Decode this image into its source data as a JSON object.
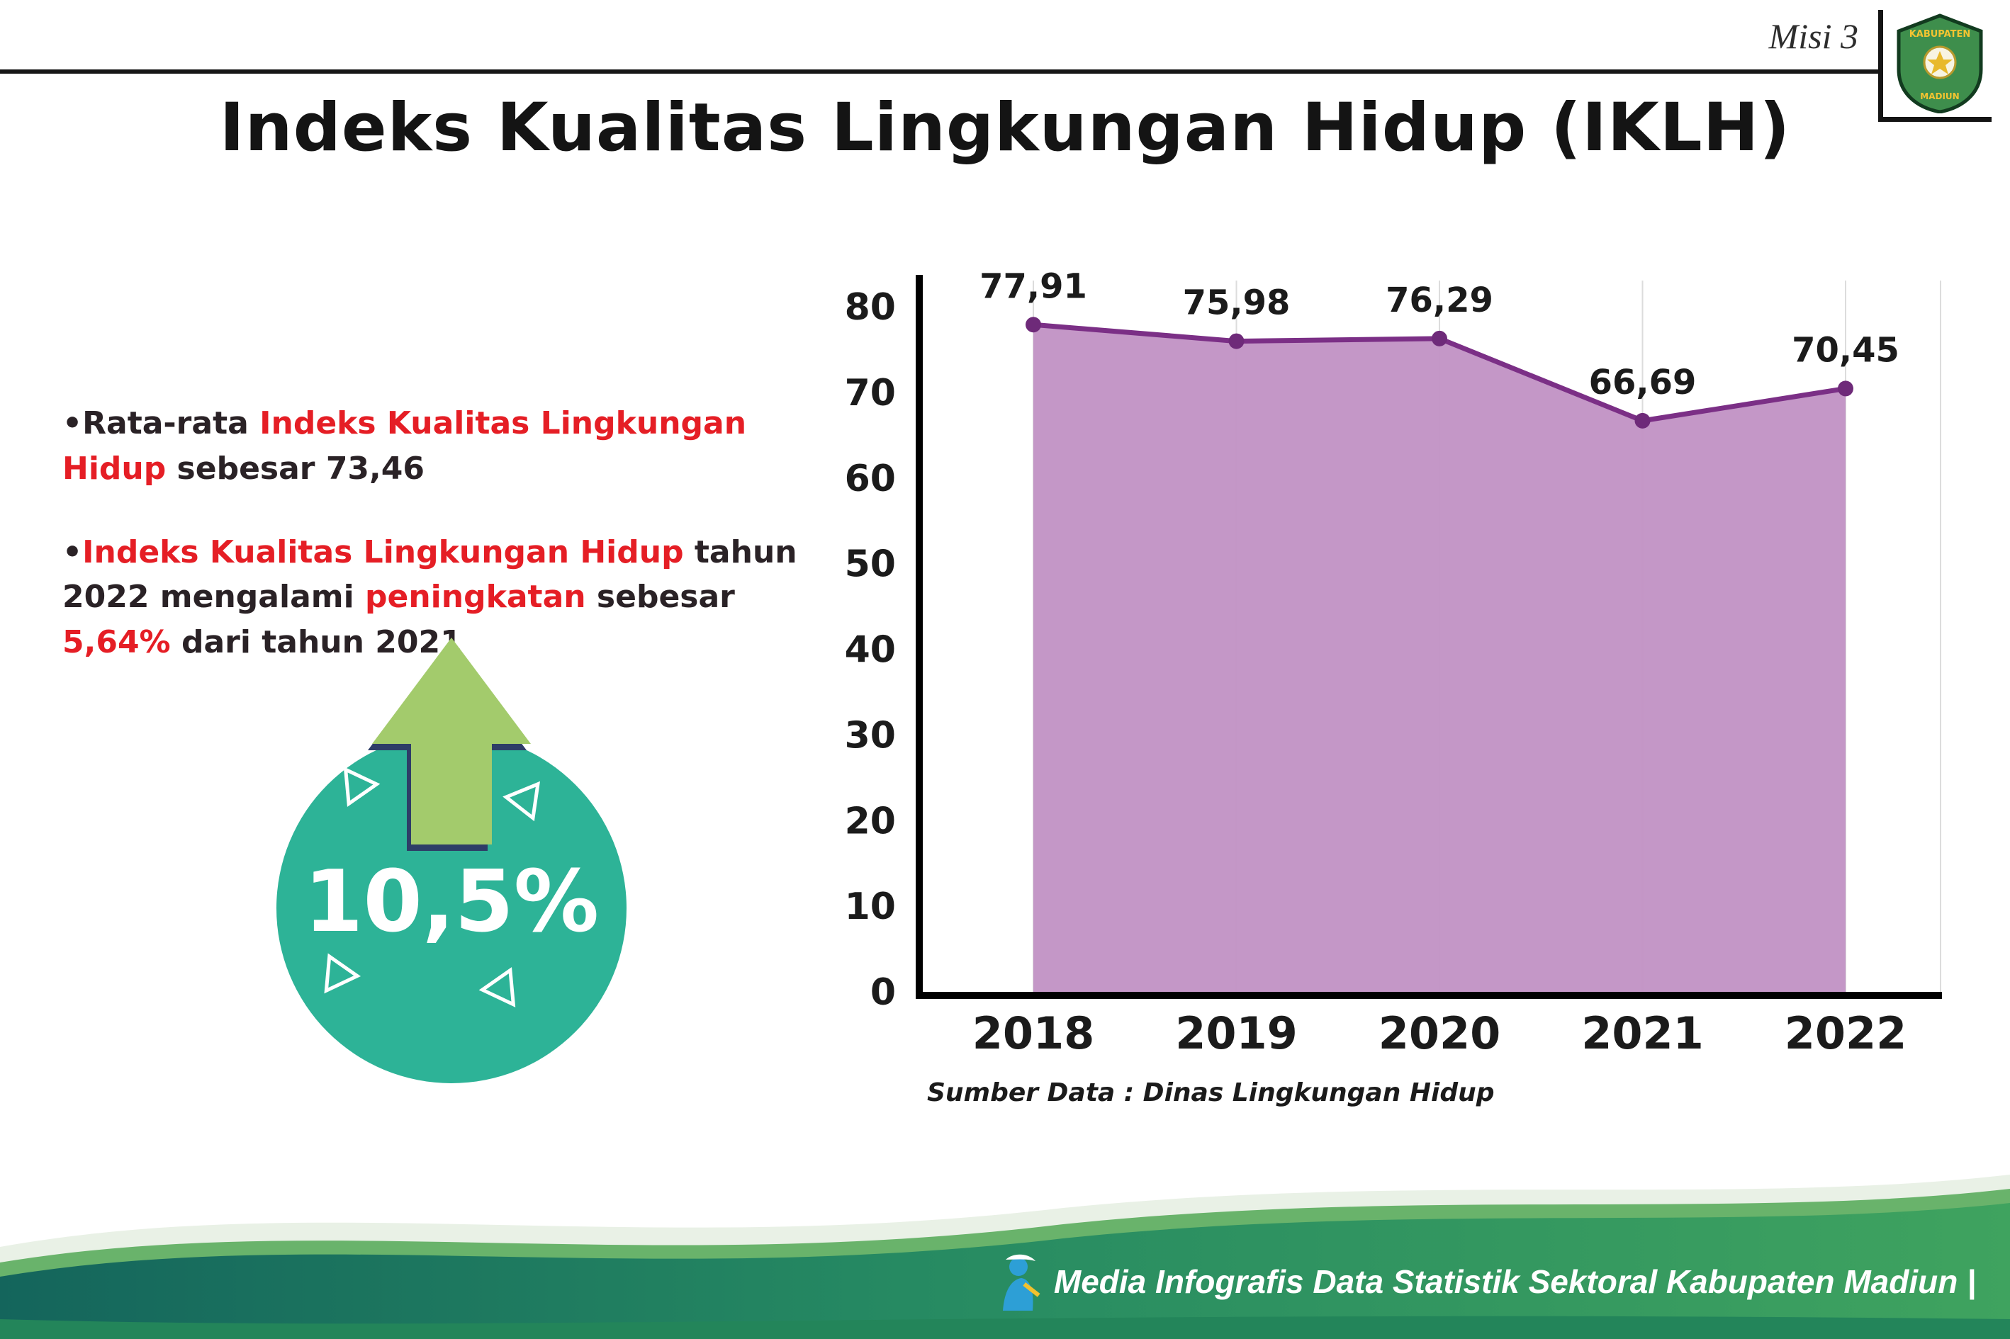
{
  "page": {
    "misi_label": "Misi 3",
    "title": "Indeks Kualitas Lingkungan Hidup (IKLH)"
  },
  "logo": {
    "name": "kabupaten-madiun-emblem",
    "top_text": "KABUPATEN",
    "bottom_text": "MADIUN"
  },
  "bullets": {
    "marker": "•",
    "item1": {
      "p1": "Rata-rata ",
      "p2": "Indeks Kualitas Lingkungan Hidup",
      "p3": " sebesar 73,46"
    },
    "item2": {
      "p1": "Indeks Kualitas Lingkungan Hidup",
      "p2": " tahun 2022 mengalami ",
      "p3": "peningkatan",
      "p4": " sebesar ",
      "p5": "5,64%",
      "p6": " dari tahun 2021"
    }
  },
  "badge": {
    "value": "10,5%",
    "meaning": "peningkatan IKLH",
    "circle_color": "#2db397",
    "arrow_color": "#a3cb6c"
  },
  "chart_data": {
    "type": "area",
    "title": "Indeks Kualitas Lingkungan Hidup (IKLH)",
    "categories": [
      "2018",
      "2019",
      "2020",
      "2021",
      "2022"
    ],
    "values": [
      77.91,
      75.98,
      76.29,
      66.69,
      70.45
    ],
    "point_labels": [
      "77,91",
      "75,98",
      "76,29",
      "66,69",
      "70,45"
    ],
    "ylim": [
      0,
      80
    ],
    "yticks": [
      0,
      10,
      20,
      30,
      40,
      50,
      60,
      70,
      80
    ],
    "grid": "vertical",
    "legend": "none",
    "source": "Sumber Data : Dinas Lingkungan Hidup",
    "colors": {
      "area_fill": "#c191c4",
      "line": "#7b2f86",
      "point": "#6e2a79",
      "axis": "#000000",
      "grid": "#dcdcdc"
    }
  },
  "footer": {
    "text": "Media Infografis Data Statistik Sektoral Kabupaten Madiun |"
  },
  "colors": {
    "accent_red": "#e51e25",
    "badge_teal": "#2db397",
    "arrow_green": "#a3cb6c",
    "text_dark": "#2a2226"
  }
}
